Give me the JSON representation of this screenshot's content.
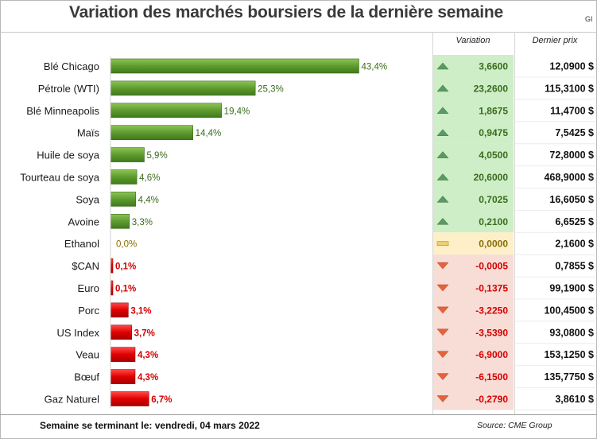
{
  "title": "Variation des marchés boursiers de la dernière semaine",
  "corner_text": "GI",
  "columns": {
    "variation": "Variation",
    "price": "Dernier prix"
  },
  "footer": {
    "week_label": "Semaine se terminant le: vendredi, 04 mars 2022",
    "source": "Source: CME Group"
  },
  "colors": {
    "up_bar": "#5e9b2e",
    "down_bar": "#e00000",
    "up_cell": "#cdeec6",
    "flat_cell": "#fdf0c9",
    "down_cell": "#f8dcd6",
    "up_text": "#3a6b1d",
    "flat_text": "#8a6a00",
    "down_text": "#d40000",
    "up_icon": "#5a9960",
    "flat_icon": "#f2cf6e",
    "down_icon": "#e2633c"
  },
  "chart_data": {
    "type": "bar",
    "orientation": "horizontal",
    "categories": [
      "Blé Chicago",
      "Pétrole (WTI)",
      "Blé Minneapolis",
      "Maïs",
      "Huile de soya",
      "Tourteau de soya",
      "Soya",
      "Avoine",
      "Ethanol",
      "$CAN",
      "Euro",
      "Porc",
      "US Index",
      "Veau",
      "Bœuf",
      "Gaz Naturel"
    ],
    "values": [
      43.4,
      25.3,
      19.4,
      14.4,
      5.9,
      4.6,
      4.4,
      3.3,
      0.0,
      -0.1,
      -0.1,
      -3.1,
      -3.7,
      -4.3,
      -4.3,
      -6.7
    ],
    "value_labels": [
      "43,4%",
      "25,3%",
      "19,4%",
      "14,4%",
      "5,9%",
      "4,6%",
      "4,4%",
      "3,3%",
      "0,0%",
      "0,1%",
      "0,1%",
      "3,1%",
      "3,7%",
      "4,3%",
      "4,3%",
      "6,7%"
    ],
    "unit": "%",
    "variation": [
      "3,6600",
      "23,2600",
      "1,8675",
      "0,9475",
      "4,0500",
      "20,6000",
      "0,7025",
      "0,2100",
      "0,0000",
      "-0,0005",
      "-0,1375",
      "-3,2250",
      "-3,5390",
      "-6,9000",
      "-6,1500",
      "-0,2790"
    ],
    "direction": [
      "up",
      "up",
      "up",
      "up",
      "up",
      "up",
      "up",
      "up",
      "flat",
      "down",
      "down",
      "down",
      "down",
      "down",
      "down",
      "down"
    ],
    "last_price": [
      "12,0900 $",
      "115,3100 $",
      "11,4700 $",
      "7,5425 $",
      "72,8000 $",
      "468,9000 $",
      "16,6050 $",
      "6,6525 $",
      "2,1600 $",
      "0,7855 $",
      "99,1900 $",
      "100,4500 $",
      "93,0800 $",
      "153,1250 $",
      "135,7750 $",
      "3,8610 $"
    ],
    "grid": false,
    "legend": "none"
  }
}
